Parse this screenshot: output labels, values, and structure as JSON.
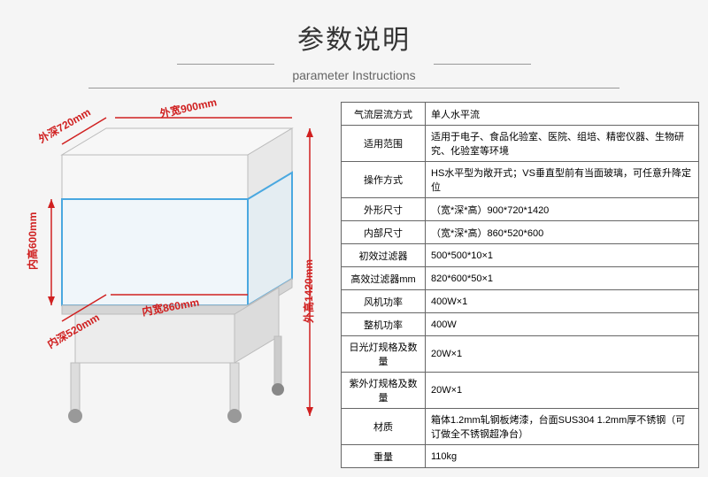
{
  "header": {
    "title_cn": "参数说明",
    "title_en": "parameter Instructions"
  },
  "figure": {
    "outer_depth": "外深720mm",
    "outer_width": "外宽900mm",
    "inner_height": "内高600mm",
    "inner_depth": "内深520mm",
    "inner_width": "内宽860mm",
    "outer_height": "外高1420mm",
    "cabinet": {
      "body_color": "#f7f7f7",
      "edge_color": "#cccccc",
      "glass_edge": "#4aa8e0",
      "shadow": "#999999"
    },
    "label_color": "#d02020"
  },
  "spec_table": {
    "rows": [
      {
        "label": "气流层流方式",
        "value": "单人水平流"
      },
      {
        "label": "适用范围",
        "value": "适用于电子、食品化验室、医院、组培、精密仪器、生物研究、化验室等环境"
      },
      {
        "label": "操作方式",
        "value": "HS水平型为敞开式；VS垂直型前有当面玻璃，可任意升降定位"
      },
      {
        "label": "外形尺寸",
        "value": "（宽*深*高）900*720*1420"
      },
      {
        "label": "内部尺寸",
        "value": "（宽*深*高）860*520*600"
      },
      {
        "label": "初效过滤器",
        "value": "500*500*10×1"
      },
      {
        "label": "高效过滤器mm",
        "value": "820*600*50×1"
      },
      {
        "label": "风机功率",
        "value": "400W×1"
      },
      {
        "label": "整机功率",
        "value": "400W"
      },
      {
        "label": "日光灯规格及数量",
        "value": "20W×1"
      },
      {
        "label": "紫外灯规格及数量",
        "value": "20W×1"
      },
      {
        "label": "材质",
        "value": "箱体1.2mm轧钢板烤漆，台面SUS304 1.2mm厚不锈钢（可订做全不锈钢超净台）"
      },
      {
        "label": "重量",
        "value": "110kg"
      }
    ]
  }
}
